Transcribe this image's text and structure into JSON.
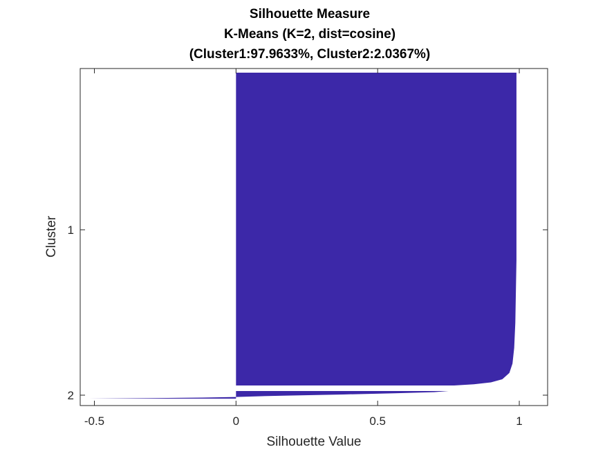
{
  "chart_data": {
    "type": "area",
    "title": [
      "Silhouette Measure",
      "K-Means (K=2, dist=cosine)",
      "(Cluster1:97.9633%, Cluster2:2.0367%)"
    ],
    "xlabel": "Silhouette Value",
    "ylabel": "Cluster",
    "xlim": [
      -0.55,
      1.1
    ],
    "xticks": [
      -0.5,
      0,
      0.5,
      1
    ],
    "xtick_labels": [
      "-0.5",
      "0",
      "0.5",
      "1"
    ],
    "yticks": [
      "1",
      "2"
    ],
    "grid": false,
    "color": "#3C28A8",
    "series": [
      {
        "name": "1",
        "share_percent": 97.9633,
        "silhouette_profile": [
          [
            0.0,
            0.99
          ],
          [
            0.05,
            0.99
          ],
          [
            0.1,
            0.99
          ],
          [
            0.2,
            0.99
          ],
          [
            0.3,
            0.99
          ],
          [
            0.4,
            0.99
          ],
          [
            0.5,
            0.99
          ],
          [
            0.6,
            0.99
          ],
          [
            0.7,
            0.988
          ],
          [
            0.8,
            0.986
          ],
          [
            0.88,
            0.982
          ],
          [
            0.93,
            0.976
          ],
          [
            0.96,
            0.965
          ],
          [
            0.98,
            0.94
          ],
          [
            0.99,
            0.9
          ],
          [
            0.996,
            0.84
          ],
          [
            1.0,
            0.77
          ]
        ]
      },
      {
        "name": "2",
        "share_percent": 2.0367,
        "silhouette_profile": [
          [
            0.0,
            0.75
          ],
          [
            0.15,
            0.7
          ],
          [
            0.3,
            0.56
          ],
          [
            0.45,
            0.38
          ],
          [
            0.6,
            0.18
          ],
          [
            0.7,
            0.07
          ],
          [
            0.78,
            0.0
          ],
          [
            0.86,
            -0.12
          ],
          [
            0.93,
            -0.3
          ],
          [
            1.0,
            -0.52
          ]
        ]
      }
    ]
  }
}
